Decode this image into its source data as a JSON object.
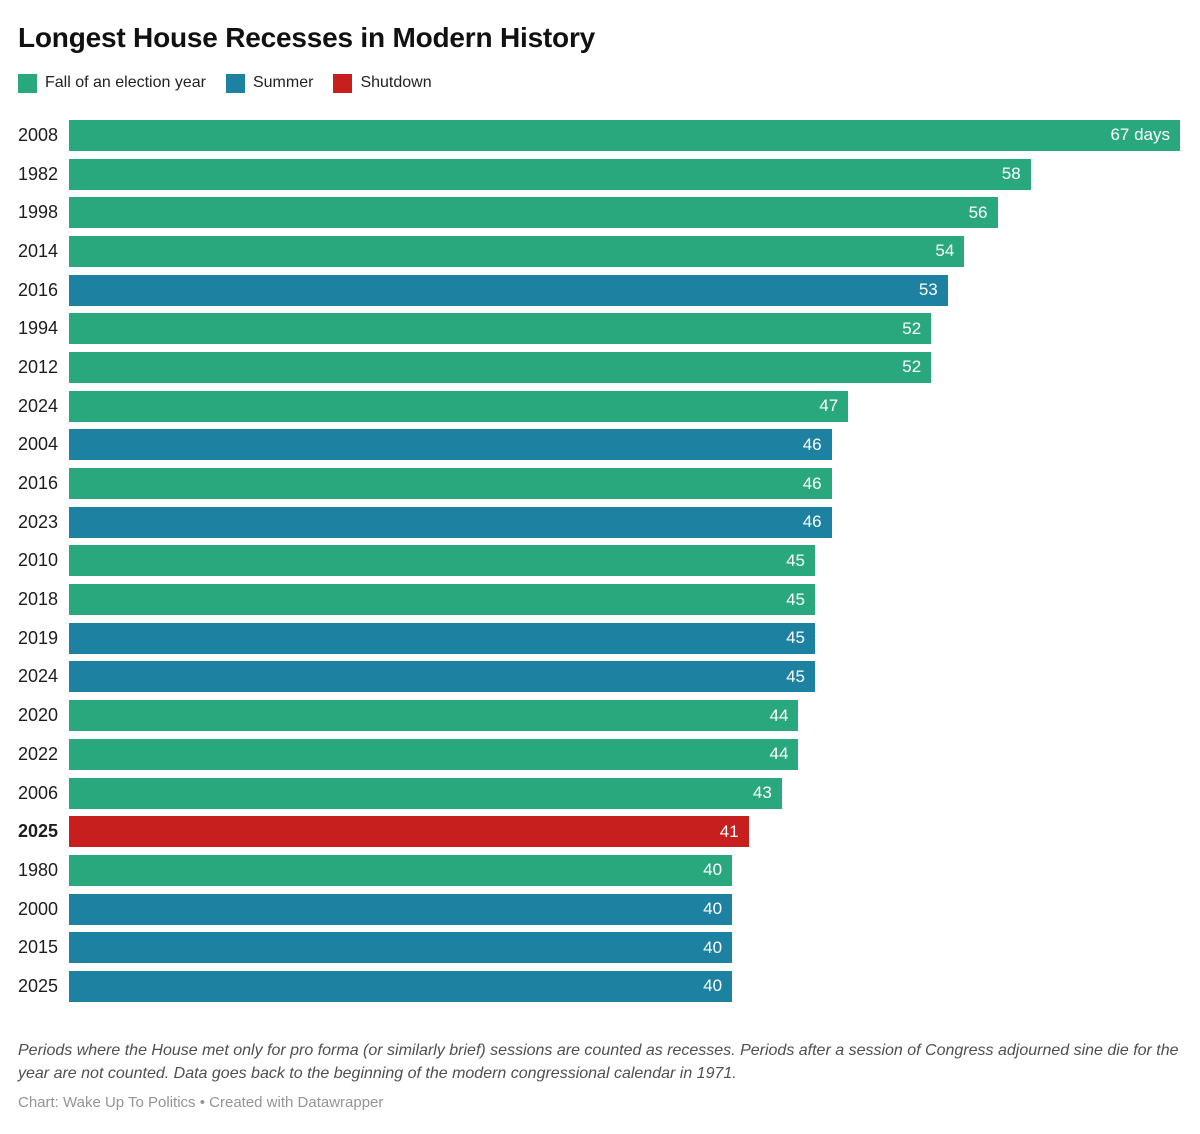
{
  "title": "Longest House Recesses in Modern History",
  "legend": [
    {
      "key": "fall",
      "label": "Fall of an election year",
      "color": "#2aa87d"
    },
    {
      "key": "summer",
      "label": "Summer",
      "color": "#1d81a2"
    },
    {
      "key": "shutdown",
      "label": "Shutdown",
      "color": "#c71e1e"
    }
  ],
  "chart_data": {
    "type": "bar",
    "orientation": "horizontal",
    "title": "Longest House Recesses in Modern History",
    "value_unit": "days",
    "xlim": [
      0,
      67
    ],
    "grid": false,
    "legend_position": "top",
    "rows": [
      {
        "year": "2008",
        "value": 67,
        "category": "fall",
        "value_label": "67 days",
        "bold_year": false
      },
      {
        "year": "1982",
        "value": 58,
        "category": "fall",
        "value_label": "58",
        "bold_year": false
      },
      {
        "year": "1998",
        "value": 56,
        "category": "fall",
        "value_label": "56",
        "bold_year": false
      },
      {
        "year": "2014",
        "value": 54,
        "category": "fall",
        "value_label": "54",
        "bold_year": false
      },
      {
        "year": "2016",
        "value": 53,
        "category": "summer",
        "value_label": "53",
        "bold_year": false
      },
      {
        "year": "1994",
        "value": 52,
        "category": "fall",
        "value_label": "52",
        "bold_year": false
      },
      {
        "year": "2012",
        "value": 52,
        "category": "fall",
        "value_label": "52",
        "bold_year": false
      },
      {
        "year": "2024",
        "value": 47,
        "category": "fall",
        "value_label": "47",
        "bold_year": false
      },
      {
        "year": "2004",
        "value": 46,
        "category": "summer",
        "value_label": "46",
        "bold_year": false
      },
      {
        "year": "2016",
        "value": 46,
        "category": "fall",
        "value_label": "46",
        "bold_year": false
      },
      {
        "year": "2023",
        "value": 46,
        "category": "summer",
        "value_label": "46",
        "bold_year": false
      },
      {
        "year": "2010",
        "value": 45,
        "category": "fall",
        "value_label": "45",
        "bold_year": false
      },
      {
        "year": "2018",
        "value": 45,
        "category": "fall",
        "value_label": "45",
        "bold_year": false
      },
      {
        "year": "2019",
        "value": 45,
        "category": "summer",
        "value_label": "45",
        "bold_year": false
      },
      {
        "year": "2024",
        "value": 45,
        "category": "summer",
        "value_label": "45",
        "bold_year": false
      },
      {
        "year": "2020",
        "value": 44,
        "category": "fall",
        "value_label": "44",
        "bold_year": false
      },
      {
        "year": "2022",
        "value": 44,
        "category": "fall",
        "value_label": "44",
        "bold_year": false
      },
      {
        "year": "2006",
        "value": 43,
        "category": "fall",
        "value_label": "43",
        "bold_year": false
      },
      {
        "year": "2025",
        "value": 41,
        "category": "shutdown",
        "value_label": "41",
        "bold_year": true
      },
      {
        "year": "1980",
        "value": 40,
        "category": "fall",
        "value_label": "40",
        "bold_year": false
      },
      {
        "year": "2000",
        "value": 40,
        "category": "summer",
        "value_label": "40",
        "bold_year": false
      },
      {
        "year": "2015",
        "value": 40,
        "category": "summer",
        "value_label": "40",
        "bold_year": false
      },
      {
        "year": "2025",
        "value": 40,
        "category": "summer",
        "value_label": "40",
        "bold_year": false
      }
    ]
  },
  "footer": {
    "note": "Periods where the House met only for pro forma (or similarly brief) sessions are counted as recesses. Periods after a session of Congress adjourned sine die for the year are not counted. Data goes back to the beginning of the modern congressional calendar in 1971.",
    "credit": "Chart: Wake Up To Politics • Created with Datawrapper"
  }
}
